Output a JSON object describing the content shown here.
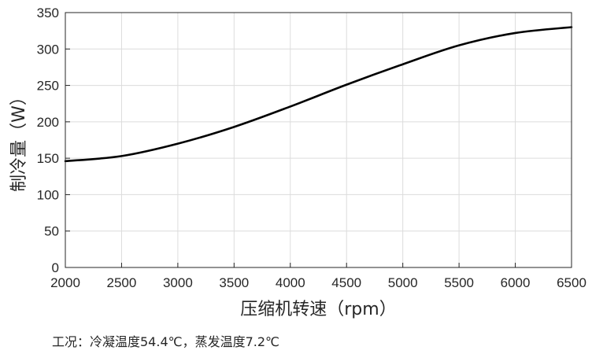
{
  "chart_data": {
    "type": "line",
    "title": "",
    "xlabel": "压缩机转速（rpm）",
    "ylabel": "制冷量（W）",
    "xlim": [
      2000,
      6500
    ],
    "ylim": [
      0,
      350
    ],
    "xticks": [
      2000,
      2500,
      3000,
      3500,
      4000,
      4500,
      5000,
      5500,
      6000,
      6500
    ],
    "yticks": [
      0,
      50,
      100,
      150,
      200,
      250,
      300,
      350
    ],
    "grid": true,
    "legend": "none",
    "series": [
      {
        "color": "#000000",
        "x": [
          2000,
          2500,
          3000,
          3500,
          4000,
          4500,
          5000,
          5500,
          6000,
          6500
        ],
        "y": [
          146,
          153,
          170,
          193,
          221,
          251,
          279,
          305,
          322,
          330
        ]
      }
    ]
  },
  "note": "工况：冷凝温度54.4℃，蒸发温度7.2℃"
}
